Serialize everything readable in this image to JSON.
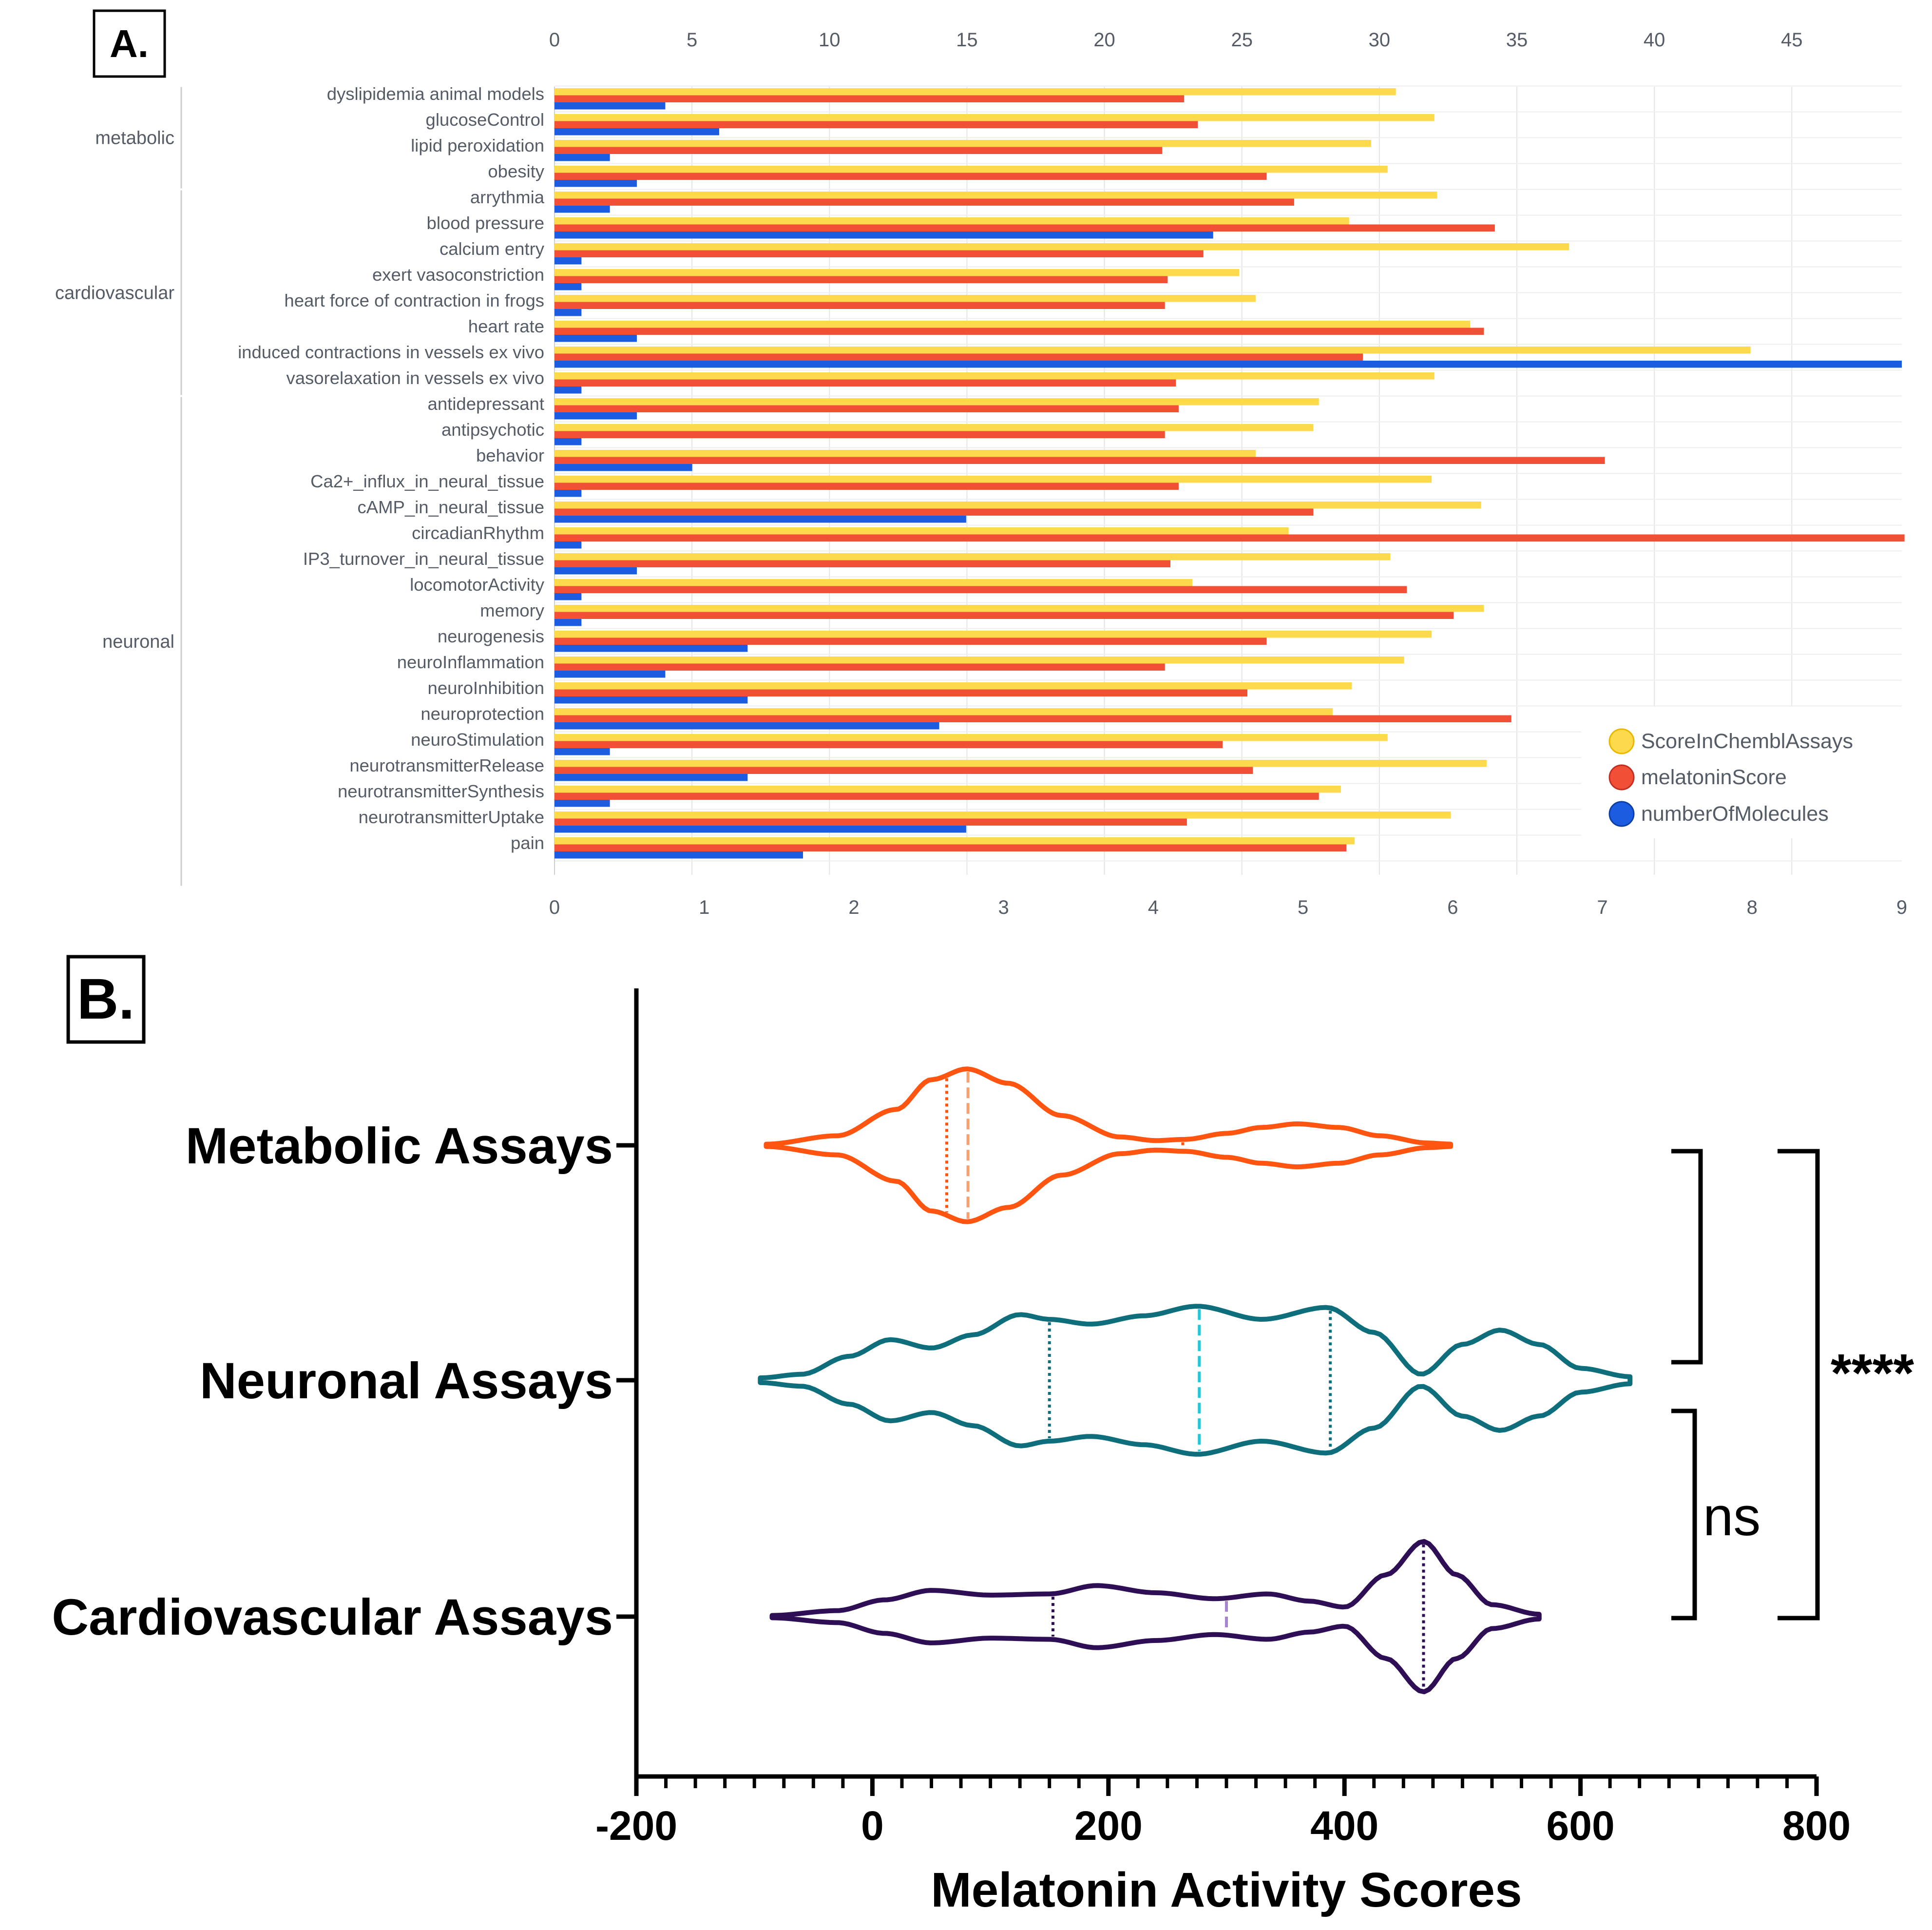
{
  "panel_a": {
    "label": "A.",
    "legend": [
      {
        "name": "ScoreInChemblAssays",
        "color": "#fdd94c"
      },
      {
        "name": "melatoninScore",
        "color": "#f14f36"
      },
      {
        "name": "numberOfMolecules",
        "color": "#1b5ce0"
      }
    ]
  },
  "panel_b": {
    "label": "B.",
    "significance": {
      "top": "****",
      "bottom": "ns"
    }
  },
  "chart_data": [
    {
      "type": "bar",
      "orientation": "horizontal",
      "title": "",
      "top_axis": {
        "range": [
          0,
          49
        ],
        "ticks": [
          0,
          5,
          10,
          15,
          20,
          25,
          30,
          35,
          40,
          45
        ],
        "series": [
          "ScoreInChemblAssays",
          "melatoninScore"
        ]
      },
      "bottom_axis": {
        "range": [
          0,
          9
        ],
        "ticks": [
          0,
          1,
          2,
          3,
          4,
          5,
          6,
          7,
          8,
          9
        ],
        "series": [
          "numberOfMolecules"
        ]
      },
      "groups": [
        {
          "name": "metabolic",
          "start": 0,
          "end": 3
        },
        {
          "name": "cardiovascular",
          "start": 4,
          "end": 11
        },
        {
          "name": "neuronal",
          "start": 12,
          "end": 30
        }
      ],
      "categories": [
        "dyslipidemia animal models",
        "glucoseControl",
        "lipid peroxidation",
        "obesity",
        "arrythmia",
        "blood pressure",
        "calcium entry",
        "exert vasoconstriction",
        "heart force of contraction in frogs",
        "heart rate",
        "induced contractions in vessels ex vivo",
        "vasorelaxation in vessels ex vivo",
        "antidepressant",
        "antipsychotic",
        "behavior",
        "Ca2+_influx_in_neural_tissue",
        "cAMP_in_neural_tissue",
        "circadianRhythm",
        "IP3_turnover_in_neural_tissue",
        "locomotorActivity",
        "memory",
        "neurogenesis",
        "neuroInflammation",
        "neuroInhibition",
        "neuroprotection",
        "neuroStimulation",
        "neurotransmitterRelease",
        "neurotransmitterSynthesis",
        "neurotransmitterUptake",
        "pain"
      ],
      "series": [
        {
          "name": "ScoreInChemblAssays",
          "color": "#fdd94c",
          "axis": "top",
          "values": [
            30.6,
            32.0,
            29.7,
            30.3,
            32.1,
            28.9,
            36.9,
            24.9,
            25.5,
            33.3,
            43.5,
            32.0,
            27.8,
            27.6,
            25.5,
            31.9,
            33.7,
            26.7,
            30.4,
            23.2,
            33.8,
            31.9,
            30.9,
            29.0,
            28.3,
            30.3,
            33.9,
            28.6,
            32.6,
            29.1
          ]
        },
        {
          "name": "melatoninScore",
          "color": "#f14f36",
          "axis": "top",
          "values": [
            22.9,
            23.4,
            22.1,
            25.9,
            26.9,
            34.2,
            23.6,
            22.3,
            22.2,
            33.8,
            29.4,
            22.6,
            22.7,
            22.2,
            38.2,
            22.7,
            27.6,
            49.1,
            22.4,
            31.0,
            32.7,
            25.9,
            22.2,
            25.2,
            34.8,
            24.3,
            25.4,
            27.8,
            23.0,
            28.8
          ]
        },
        {
          "name": "numberOfMolecules",
          "color": "#1b5ce0",
          "axis": "bottom",
          "values": [
            0.74,
            1.1,
            0.37,
            0.55,
            0.37,
            4.4,
            0.18,
            0.18,
            0.18,
            0.55,
            9.0,
            0.18,
            0.55,
            0.18,
            0.92,
            0.18,
            2.75,
            0.18,
            0.55,
            0.18,
            0.18,
            1.29,
            0.74,
            1.29,
            2.57,
            0.37,
            1.29,
            0.37,
            2.75,
            1.66
          ]
        }
      ]
    },
    {
      "type": "violin",
      "orientation": "horizontal",
      "xlabel": "Melatonin Activity Scores",
      "xlim": [
        -200,
        800
      ],
      "xticks": [
        -200,
        0,
        200,
        400,
        600,
        800
      ],
      "categories": [
        "Metabolic Assays",
        "Neuronal Assays",
        "Cardiovascular Assays"
      ],
      "violins": [
        {
          "name": "Metabolic Assays",
          "color": "#ff5510",
          "quartile_color": "#f4a070",
          "range": [
            -90,
            490
          ],
          "q1": 63,
          "median": 81,
          "q3": 263,
          "density": [
            [
              -90,
              1
            ],
            [
              -30,
              8
            ],
            [
              20,
              30
            ],
            [
              50,
              55
            ],
            [
              80,
              64
            ],
            [
              115,
              52
            ],
            [
              160,
              25
            ],
            [
              210,
              7
            ],
            [
              240,
              4
            ],
            [
              265,
              5
            ],
            [
              300,
              10
            ],
            [
              330,
              15
            ],
            [
              360,
              18
            ],
            [
              395,
              15
            ],
            [
              430,
              8
            ],
            [
              470,
              2
            ],
            [
              490,
              1
            ]
          ]
        },
        {
          "name": "Neuronal Assays",
          "color": "#0f6e7c",
          "quartile_color": "#1ec8d8",
          "range": [
            -95,
            642
          ],
          "q1": 150,
          "median": 277,
          "q3": 388,
          "density": [
            [
              -95,
              2
            ],
            [
              -60,
              5
            ],
            [
              -20,
              20
            ],
            [
              15,
              34
            ],
            [
              50,
              27
            ],
            [
              85,
              38
            ],
            [
              125,
              55
            ],
            [
              150,
              51
            ],
            [
              185,
              47
            ],
            [
              230,
              54
            ],
            [
              275,
              62
            ],
            [
              330,
              51
            ],
            [
              385,
              61
            ],
            [
              425,
              40
            ],
            [
              465,
              5
            ],
            [
              500,
              30
            ],
            [
              532,
              42
            ],
            [
              565,
              30
            ],
            [
              600,
              10
            ],
            [
              642,
              3
            ]
          ]
        },
        {
          "name": "Cardiovascular Assays",
          "color": "#2e0f55",
          "quartile_color": "#a883d0",
          "range": [
            -85,
            565
          ],
          "q1": 153,
          "median": 300,
          "q3": 467,
          "density": [
            [
              -85,
              1
            ],
            [
              -30,
              5
            ],
            [
              10,
              14
            ],
            [
              50,
              22
            ],
            [
              100,
              18
            ],
            [
              150,
              19
            ],
            [
              190,
              26
            ],
            [
              240,
              20
            ],
            [
              290,
              15
            ],
            [
              335,
              19
            ],
            [
              370,
              13
            ],
            [
              400,
              8
            ],
            [
              435,
              35
            ],
            [
              467,
              63
            ],
            [
              495,
              35
            ],
            [
              525,
              10
            ],
            [
              565,
              2
            ]
          ]
        }
      ]
    }
  ]
}
